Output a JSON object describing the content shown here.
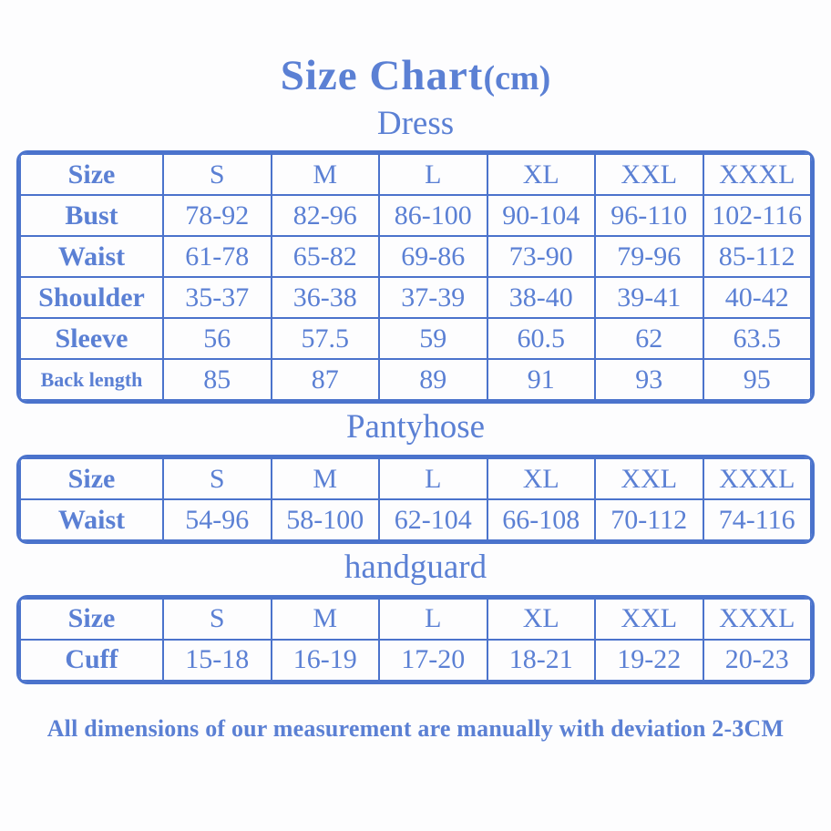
{
  "page": {
    "title": "Size Chart",
    "title_suffix": "(cm)",
    "footer": "All dimensions of our measurement are manually with deviation 2-3CM"
  },
  "colors": {
    "text_blue": "#5b80d4",
    "border_blue": "#4b73cc",
    "background": "#fdfdfe"
  },
  "tables": [
    {
      "heading": "Dress",
      "header": [
        "Size",
        "S",
        "M",
        "L",
        "XL",
        "XXL",
        "XXXL"
      ],
      "rows": [
        {
          "label": "Bust",
          "small": false,
          "values": [
            "78-92",
            "82-96",
            "86-100",
            "90-104",
            "96-110",
            "102-116"
          ]
        },
        {
          "label": "Waist",
          "small": false,
          "values": [
            "61-78",
            "65-82",
            "69-86",
            "73-90",
            "79-96",
            "85-112"
          ]
        },
        {
          "label": "Shoulder",
          "small": false,
          "values": [
            "35-37",
            "36-38",
            "37-39",
            "38-40",
            "39-41",
            "40-42"
          ]
        },
        {
          "label": "Sleeve",
          "small": false,
          "values": [
            "56",
            "57.5",
            "59",
            "60.5",
            "62",
            "63.5"
          ]
        },
        {
          "label": "Back length",
          "small": true,
          "values": [
            "85",
            "87",
            "89",
            "91",
            "93",
            "95"
          ]
        }
      ]
    },
    {
      "heading": "Pantyhose",
      "header": [
        "Size",
        "S",
        "M",
        "L",
        "XL",
        "XXL",
        "XXXL"
      ],
      "rows": [
        {
          "label": "Waist",
          "small": false,
          "values": [
            "54-96",
            "58-100",
            "62-104",
            "66-108",
            "70-112",
            "74-116"
          ]
        }
      ]
    },
    {
      "heading": "handguard",
      "header": [
        "Size",
        "S",
        "M",
        "L",
        "XL",
        "XXL",
        "XXXL"
      ],
      "rows": [
        {
          "label": "Cuff",
          "small": false,
          "values": [
            "15-18",
            "16-19",
            "17-20",
            "18-21",
            "19-22",
            "20-23"
          ]
        }
      ]
    }
  ]
}
